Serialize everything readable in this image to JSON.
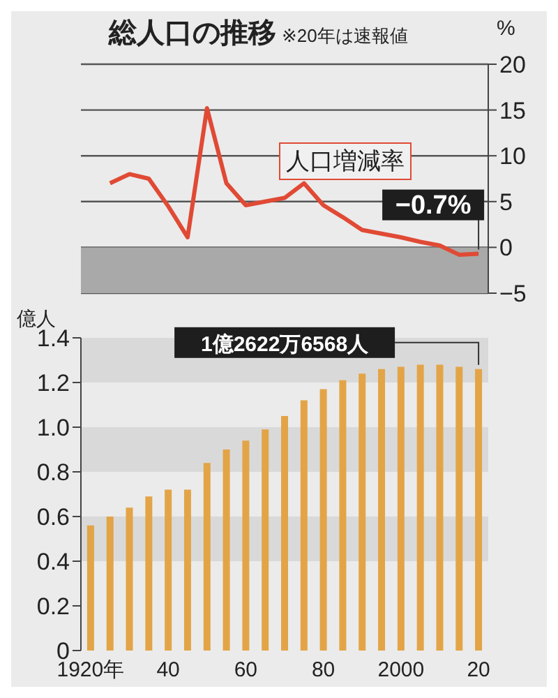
{
  "chart_data": [
    {
      "type": "line",
      "title": "総人口の推移",
      "subtitle": "※20年は速報値",
      "ylabel": "%",
      "categories": [
        null,
        null,
        null,
        null,
        null,
        null,
        null,
        null,
        null,
        null,
        null,
        null,
        null,
        null,
        null,
        null,
        null,
        null,
        null,
        null,
        null
      ],
      "series": [
        {
          "name": "人口増減率",
          "color": "#e04a35",
          "values": [
            null,
            7.0,
            8.0,
            7.5,
            4.5,
            1.1,
            15.2,
            7.0,
            4.6,
            5.0,
            5.4,
            7.0,
            4.6,
            3.3,
            1.9,
            1.5,
            1.1,
            0.6,
            0.2,
            -0.8,
            -0.7
          ]
        }
      ],
      "ylim": [
        -5,
        20
      ],
      "yticks": [
        {
          "value": -5,
          "label": "−5"
        },
        0,
        5,
        10,
        15,
        20
      ],
      "grid": "y",
      "marker": "none",
      "tick_labels": "y",
      "bands": [
        {
          "axis": "y",
          "from": -5,
          "to": 0,
          "color": "#a9a9a9"
        }
      ],
      "annotations": [
        {
          "text": "−0.7%",
          "y": -0.7
        }
      ]
    },
    {
      "type": "bar",
      "ylabel": "億人",
      "categories": [
        "1920年",
        null,
        null,
        null,
        "40",
        null,
        null,
        null,
        "60",
        null,
        null,
        null,
        "80",
        null,
        null,
        null,
        "2000",
        null,
        null,
        null,
        "20"
      ],
      "series": [
        {
          "color": "#e3a447",
          "values": [
            0.56,
            0.6,
            0.64,
            0.69,
            0.72,
            0.72,
            0.84,
            0.9,
            0.94,
            0.99,
            1.05,
            1.12,
            1.17,
            1.21,
            1.24,
            1.26,
            1.27,
            1.28,
            1.28,
            1.27,
            1.26
          ]
        }
      ],
      "ylim": [
        0,
        1.4
      ],
      "yticks": [
        0,
        0.2,
        0.4,
        0.6,
        0.8,
        {
          "value": 1,
          "label": "1.0"
        },
        1.2,
        1.4
      ],
      "grid": false,
      "bands": [
        {
          "axis": "y",
          "from": 1.2,
          "to": 1.4,
          "color": "#d9d9d9"
        },
        {
          "axis": "y",
          "from": 0.8,
          "to": 1.0,
          "color": "#d9d9d9"
        },
        {
          "axis": "y",
          "from": 0.4,
          "to": 0.6,
          "color": "#d9d9d9"
        }
      ],
      "annotations": [
        {
          "text": "1億2622万6568人",
          "x": "20",
          "y": 1.26
        }
      ]
    }
  ]
}
